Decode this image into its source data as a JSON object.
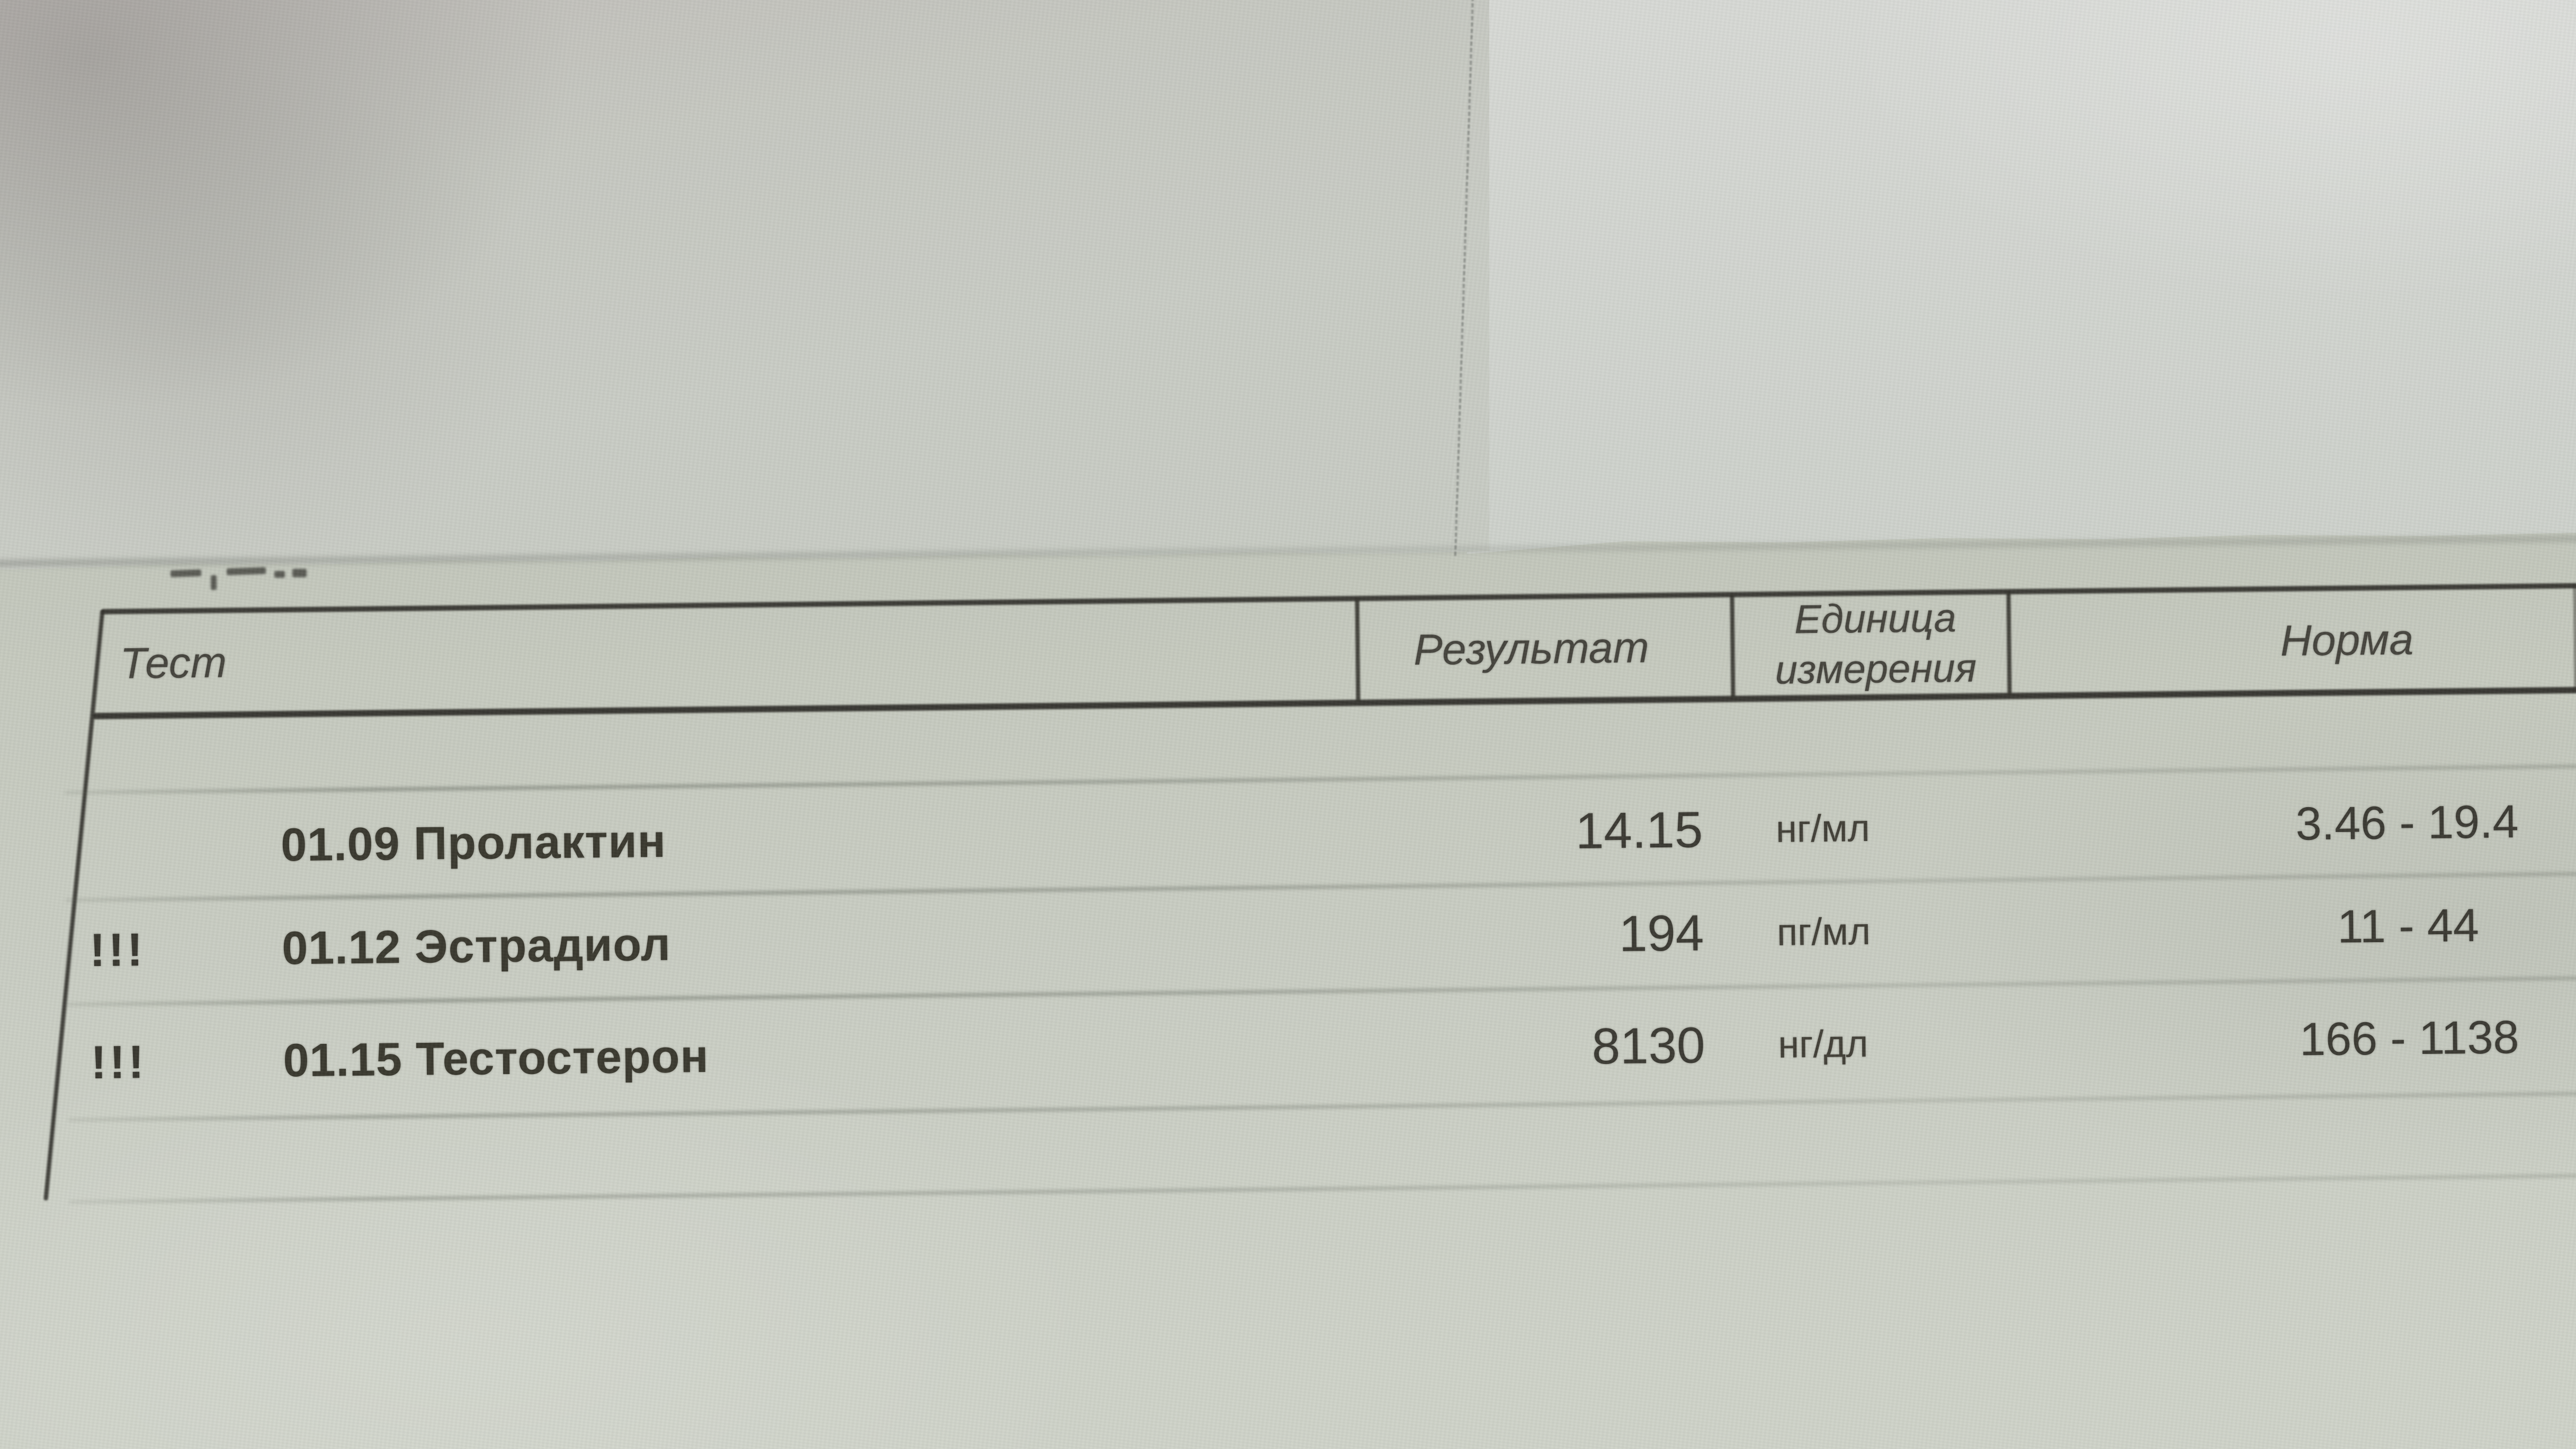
{
  "table": {
    "headers": {
      "test": "Тест",
      "result": "Результат",
      "unit": "Единица измерения",
      "norm": "Норма"
    },
    "rows": [
      {
        "marker": "",
        "test": "01.09 Пролактин",
        "result": "14.15",
        "unit": "нг/мл",
        "norm": "3.46 - 19.4"
      },
      {
        "marker": "!!!",
        "test": "01.12 Эстрадиол",
        "result": "194",
        "unit": "пг/мл",
        "norm": "11 - 44"
      },
      {
        "marker": "!!!",
        "test": "01.15 Тестостерон",
        "result": "8130",
        "unit": "нг/дл",
        "norm": "166 - 1138"
      }
    ]
  },
  "colors": {
    "paper": "#c9ccc3",
    "paper_light": "#d5d8d3",
    "paper_sheet": "#c8ccc1",
    "ink": "#3e3d36",
    "table_line": "#31302b"
  }
}
